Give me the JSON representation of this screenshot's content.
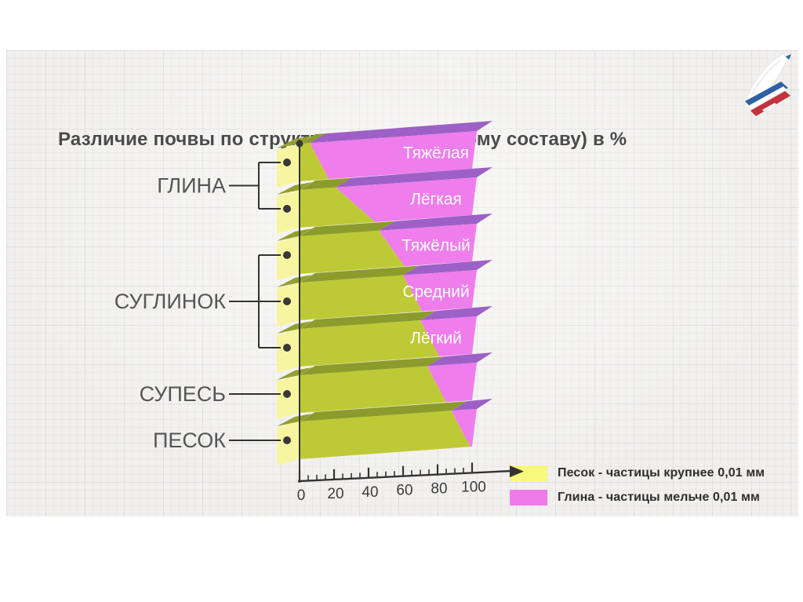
{
  "slide": {
    "title": "Различие почвы по структуре (механическому составу) в %"
  },
  "chart_data": {
    "type": "bar",
    "title": "Различие почвы по структуре (механическому составу) в %",
    "unit": "%",
    "orientation": "horizontal-stacked-3d",
    "xlim": [
      0,
      100
    ],
    "x_ticks": [
      0,
      20,
      40,
      60,
      80,
      100
    ],
    "minor_tick_step": 5,
    "series_names": [
      "Песок",
      "Глина"
    ],
    "bars": [
      {
        "group": "ГЛИНА",
        "label": "Тяжёлая",
        "sand_pct_top": 6,
        "sand_pct_bottom": 17,
        "clay_pct_top": 94,
        "clay_pct_bottom": 83
      },
      {
        "group": "ГЛИНА",
        "label": "Лёгкая",
        "sand_pct_top": 21,
        "sand_pct_bottom": 44,
        "clay_pct_top": 79,
        "clay_pct_bottom": 56
      },
      {
        "group": "СУГЛИНОК",
        "label": "Тяжёлый",
        "sand_pct_top": 46,
        "sand_pct_bottom": 61,
        "clay_pct_top": 54,
        "clay_pct_bottom": 39
      },
      {
        "group": "СУГЛИНОК",
        "label": "Средний",
        "sand_pct_top": 60,
        "sand_pct_bottom": 71,
        "clay_pct_top": 40,
        "clay_pct_bottom": 29
      },
      {
        "group": "СУГЛИНОК",
        "label": "Лёгкий",
        "sand_pct_top": 70,
        "sand_pct_bottom": 81,
        "clay_pct_top": 30,
        "clay_pct_bottom": 19
      },
      {
        "group": "СУПЕСЬ",
        "label": "",
        "sand_pct_top": 74,
        "sand_pct_bottom": 85,
        "clay_pct_top": 26,
        "clay_pct_bottom": 15
      },
      {
        "group": "ПЕСОК",
        "label": "",
        "sand_pct_top": 88,
        "sand_pct_bottom": 99,
        "clay_pct_top": 12,
        "clay_pct_bottom": 1
      }
    ],
    "groups": [
      {
        "label": "ГЛИНА",
        "bar_indexes": [
          0,
          1
        ]
      },
      {
        "label": "СУГЛИНОК",
        "bar_indexes": [
          2,
          3,
          4
        ]
      },
      {
        "label": "СУПЕСЬ",
        "bar_indexes": [
          5
        ]
      },
      {
        "label": "ПЕСОК",
        "bar_indexes": [
          6
        ]
      }
    ],
    "legend": [
      {
        "label": "Песок - частицы крупнее 0,01 мм",
        "color": "#f9f87e"
      },
      {
        "label": "Глина - частицы мельче 0,01 мм",
        "color": "#ee7be8"
      }
    ],
    "colors": {
      "sand_front": "#bdca36",
      "sand_top": "#8c9c2c",
      "clay_front": "#ef7dec",
      "clay_top": "#9c60c6",
      "side_cap": "#f7f5a0",
      "cap_top": "#93a030",
      "axis": "#333333",
      "bar_label_text": "#ffffff",
      "group_label_text": "#565656"
    }
  }
}
